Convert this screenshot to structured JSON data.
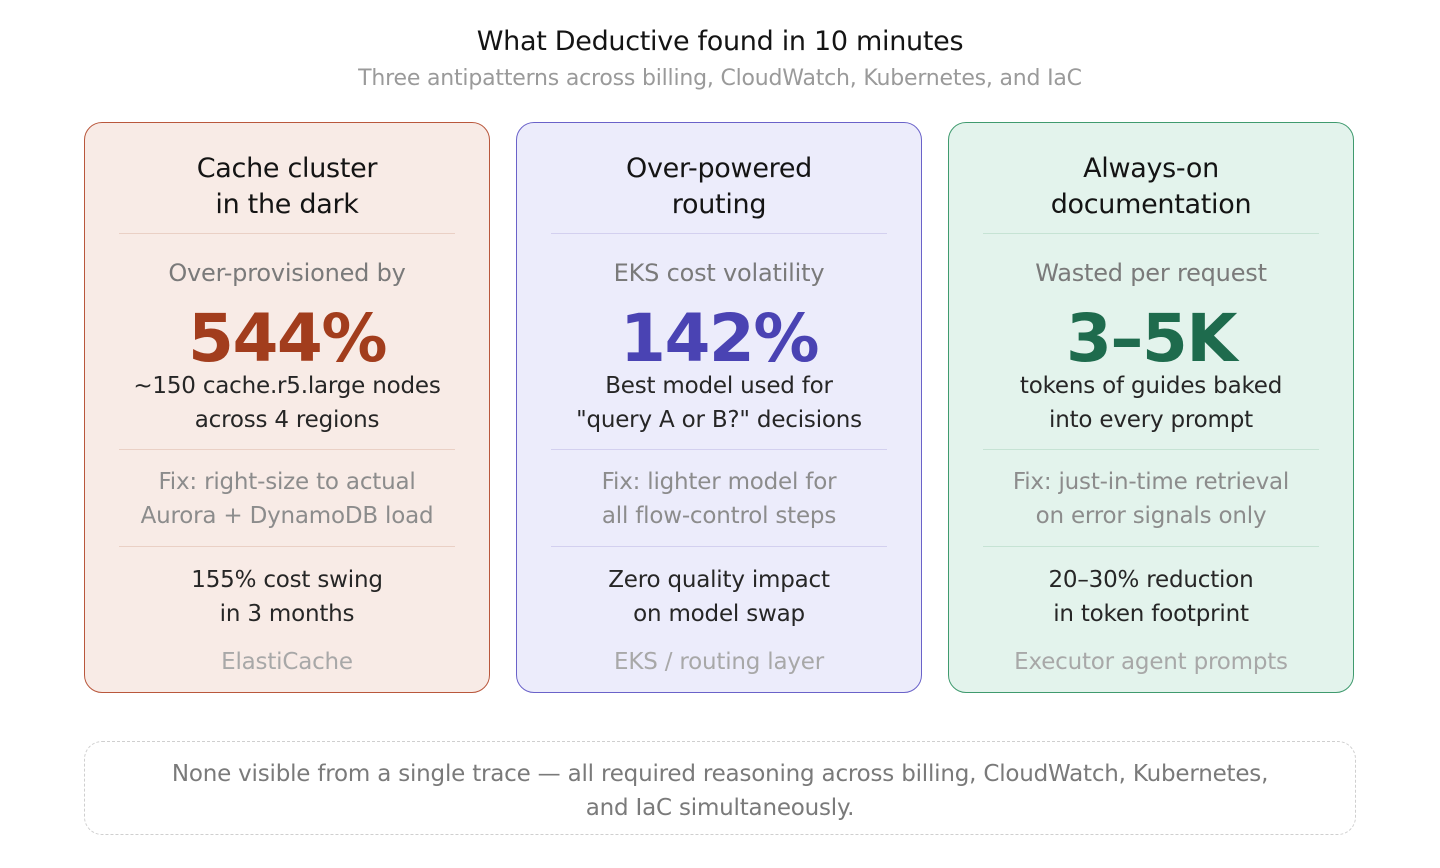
{
  "header": {
    "title": "What Deductive found in 10 minutes",
    "subtitle": "Three antipatterns across billing, CloudWatch, Kubernetes, and IaC"
  },
  "cards": [
    {
      "title_lines": [
        "Cache cluster",
        "in the dark"
      ],
      "metric_label": "Over-provisioned by",
      "metric_value": "544%",
      "metric_desc_lines": [
        "~150 cache.r5.large nodes",
        "across 4 regions"
      ],
      "fix_lines": [
        "Fix: right-size to actual",
        "Aurora + DynamoDB load"
      ],
      "impact_lines": [
        "155% cost swing",
        "in 3 months"
      ],
      "service": "ElastiCache",
      "accent_color": "#a23d1d",
      "border_color": "#b9573c",
      "background_color": "#f8ebe6"
    },
    {
      "title_lines": [
        "Over-powered",
        "routing"
      ],
      "metric_label": "EKS cost volatility",
      "metric_value": "142%",
      "metric_desc_lines": [
        "Best model used for",
        "\"query A or B?\" decisions"
      ],
      "fix_lines": [
        "Fix: lighter model for",
        "all flow-control steps"
      ],
      "impact_lines": [
        "Zero quality impact",
        "on model swap"
      ],
      "service": "EKS / routing layer",
      "accent_color": "#4a43b3",
      "border_color": "#6a62c9",
      "background_color": "#ececfb"
    },
    {
      "title_lines": [
        "Always-on",
        "documentation"
      ],
      "metric_label": "Wasted per request",
      "metric_value": "3–5K",
      "metric_desc_lines": [
        "tokens of guides baked",
        "into every prompt"
      ],
      "fix_lines": [
        "Fix: just-in-time retrieval",
        "on error signals only"
      ],
      "impact_lines": [
        "20–30% reduction",
        "in token footprint"
      ],
      "service": "Executor agent prompts",
      "accent_color": "#1e6b4d",
      "border_color": "#3f9a6e",
      "background_color": "#e3f3ec"
    }
  ],
  "footer": {
    "lines": [
      "None visible from a single trace — all required reasoning across billing, CloudWatch, Kubernetes,",
      "and IaC simultaneously."
    ]
  }
}
